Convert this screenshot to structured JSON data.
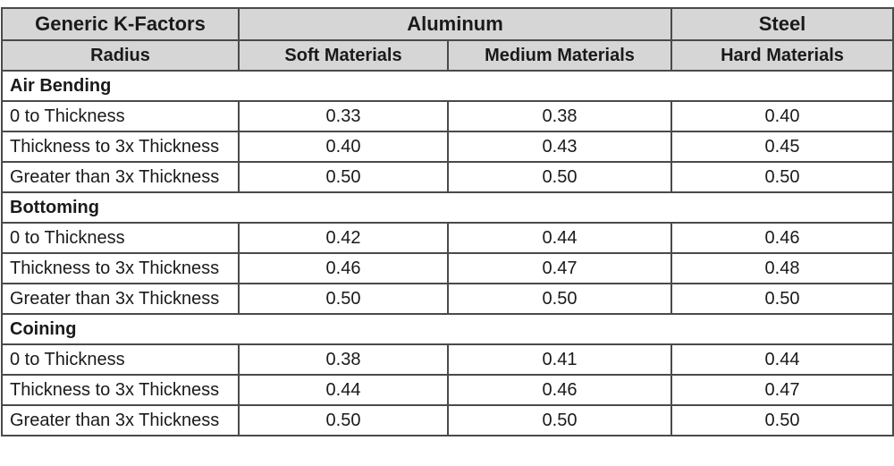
{
  "table": {
    "header": {
      "row1": [
        "Generic K-Factors",
        "Aluminum",
        "Steel"
      ],
      "row2": [
        "Radius",
        "Soft Materials",
        "Medium Materials",
        "Hard Materials"
      ]
    },
    "sections": [
      {
        "title": "Air Bending",
        "rows": [
          [
            "0 to Thickness",
            "0.33",
            "0.38",
            "0.40"
          ],
          [
            "Thickness to 3x Thickness",
            "0.40",
            "0.43",
            "0.45"
          ],
          [
            "Greater than 3x Thickness",
            "0.50",
            "0.50",
            "0.50"
          ]
        ]
      },
      {
        "title": "Bottoming",
        "rows": [
          [
            "0 to Thickness",
            "0.42",
            "0.44",
            "0.46"
          ],
          [
            "Thickness to 3x Thickness",
            "0.46",
            "0.47",
            "0.48"
          ],
          [
            "Greater than 3x Thickness",
            "0.50",
            "0.50",
            "0.50"
          ]
        ]
      },
      {
        "title": "Coining",
        "rows": [
          [
            "0 to Thickness",
            "0.38",
            "0.41",
            "0.44"
          ],
          [
            "Thickness to 3x Thickness",
            "0.44",
            "0.46",
            "0.47"
          ],
          [
            "Greater than 3x Thickness",
            "0.50",
            "0.50",
            "0.50"
          ]
        ]
      }
    ]
  }
}
